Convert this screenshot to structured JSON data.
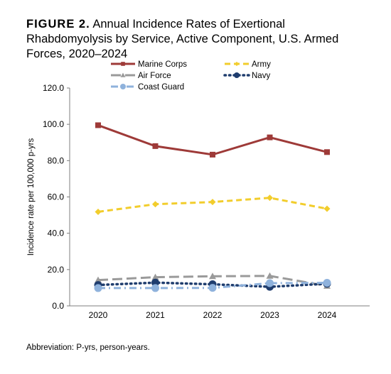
{
  "figure": {
    "label": "FIGURE 2.",
    "title": "Annual Incidence Rates of Exertional Rhabdomyolysis by Service, Active Component, U.S. Armed Forces, 2020–2024"
  },
  "footnote": "Abbreviation: P-yrs, person-years.",
  "chart_data": {
    "type": "line",
    "title": "",
    "xlabel": "",
    "ylabel": "Incidence rate per 100,000 p-yrs",
    "x": [
      "2020",
      "2021",
      "2022",
      "2023",
      "2024"
    ],
    "ylim": [
      0,
      120
    ],
    "yticks": [
      "0.0",
      "20.0",
      "40.0",
      "60.0",
      "80.0",
      "100.0",
      "120.0"
    ],
    "grid": false,
    "legend_position": "top",
    "series": [
      {
        "name": "Marine Corps",
        "values": [
          99.5,
          88.0,
          83.3,
          92.8,
          84.7
        ],
        "color": "#9e3a38",
        "dash": "solid",
        "marker": "square"
      },
      {
        "name": "Army",
        "values": [
          51.8,
          56.0,
          57.2,
          59.5,
          53.5
        ],
        "color": "#f2cd2c",
        "dash": "dashed",
        "marker": "diamond"
      },
      {
        "name": "Air Force",
        "values": [
          14.2,
          15.8,
          16.3,
          16.5,
          11.0
        ],
        "color": "#9a9a9a",
        "dash": "longdash",
        "marker": "triangle"
      },
      {
        "name": "Navy",
        "values": [
          11.5,
          12.8,
          11.9,
          10.5,
          12.2
        ],
        "color": "#1f3d6e",
        "dash": "dotted",
        "marker": "circle"
      },
      {
        "name": "Coast Guard",
        "values": [
          9.8,
          9.8,
          9.9,
          12.5,
          12.7
        ],
        "color": "#8fb2dc",
        "dash": "dashdot",
        "marker": "circle"
      }
    ]
  }
}
